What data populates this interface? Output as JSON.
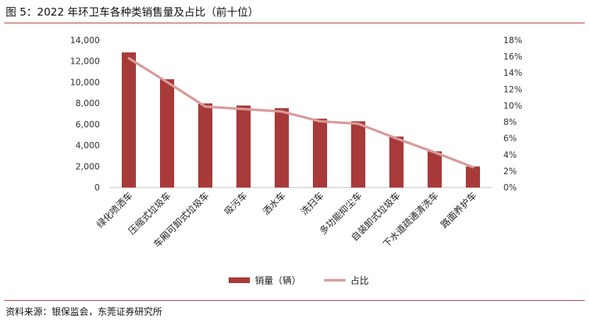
{
  "header": {
    "title": "图 5：2022 年环卫车各种类销售量及占比（前十位）"
  },
  "footer": {
    "source": "资料来源：银保监会，东莞证券研究所"
  },
  "chart_data": {
    "type": "bar",
    "categories": [
      "绿化喷洒车",
      "压缩式垃圾车",
      "车厢可卸式垃圾车",
      "吸污车",
      "洒水车",
      "洗扫车",
      "多功能抑尘车",
      "自装卸式垃圾车",
      "下水道疏通清洗车",
      "路面养护车"
    ],
    "series": [
      {
        "name": "销量（辆）",
        "type": "bar",
        "axis": "left",
        "color": "#a83a3a",
        "values": [
          12850,
          10300,
          8000,
          7800,
          7550,
          6550,
          6300,
          4850,
          3450,
          2000
        ]
      },
      {
        "name": "占比",
        "type": "line",
        "axis": "right",
        "color": "#d99a9a",
        "values": [
          15.8,
          12.9,
          9.9,
          9.6,
          9.3,
          8.1,
          7.8,
          6.0,
          4.3,
          2.5
        ]
      }
    ],
    "y_left": {
      "min": 0,
      "max": 14000,
      "step": 2000,
      "tick_labels": [
        "0",
        "2,000",
        "4,000",
        "6,000",
        "8,000",
        "10,000",
        "12,000",
        "14,000"
      ]
    },
    "y_right": {
      "min": 0,
      "max": 18,
      "step": 2,
      "tick_labels": [
        "0%",
        "2%",
        "4%",
        "6%",
        "8%",
        "10%",
        "12%",
        "14%",
        "16%",
        "18%"
      ]
    },
    "grid": false,
    "legend": {
      "position": "bottom"
    }
  }
}
